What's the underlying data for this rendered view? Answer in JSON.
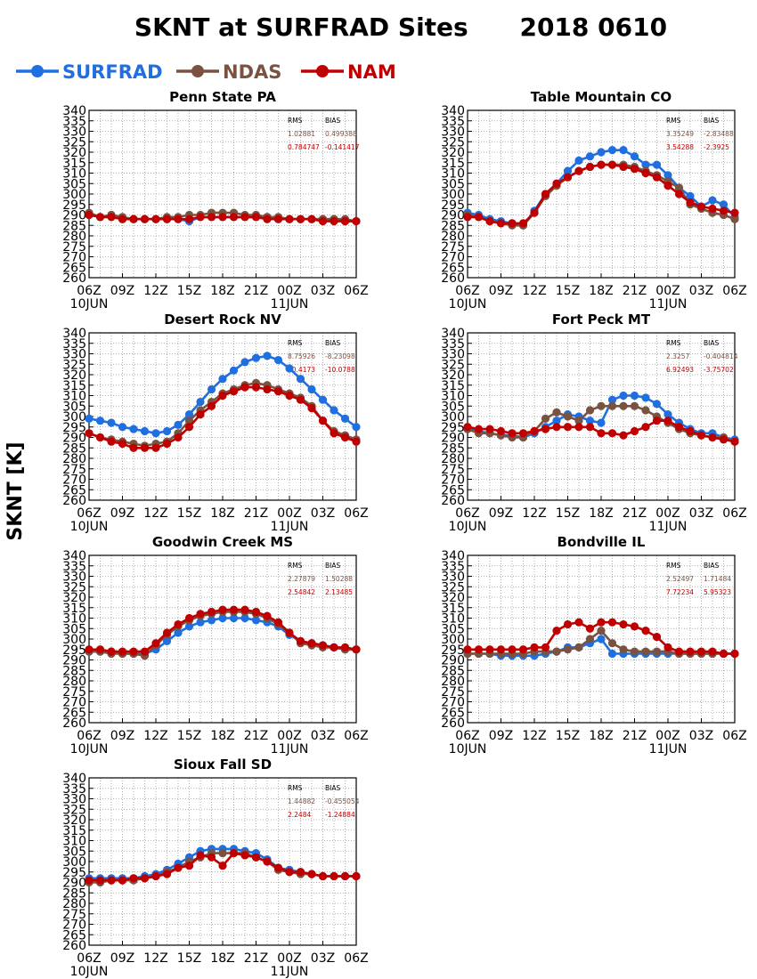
{
  "title": "SKNT at SURFRAD Sites",
  "date": "2018 0610",
  "ylabel": "SKNT [K]",
  "legend": [
    {
      "name": "SURFRAD",
      "color": "#1f6fe0"
    },
    {
      "name": "NDAS",
      "color": "#7a5240"
    },
    {
      "name": "NAM",
      "color": "#c00000"
    }
  ],
  "stats_header": {
    "rms": "RMS",
    "bias": "BIAS"
  },
  "axes": {
    "ylim": [
      260,
      340
    ],
    "yticks": [
      260,
      265,
      270,
      275,
      280,
      285,
      290,
      295,
      300,
      305,
      310,
      315,
      320,
      325,
      330,
      335,
      340
    ],
    "xlim": [
      0,
      24
    ],
    "xtick_hours": [
      0,
      3,
      6,
      9,
      12,
      15,
      18,
      21,
      24
    ],
    "xtick_labels": [
      "06Z",
      "09Z",
      "12Z",
      "15Z",
      "18Z",
      "21Z",
      "00Z",
      "03Z",
      "06Z"
    ],
    "date_labels": [
      {
        "hour": 0,
        "text": "10JUN"
      },
      {
        "hour": 18,
        "text": "11JUN"
      }
    ],
    "grid": true
  },
  "chart_data": [
    {
      "type": "line",
      "title": "Penn State PA",
      "x": [
        0,
        1,
        2,
        3,
        4,
        5,
        6,
        7,
        8,
        9,
        10,
        11,
        12,
        13,
        14,
        15,
        16,
        17,
        18,
        19,
        20,
        21,
        22,
        23,
        24
      ],
      "stats": {
        "ndas": [
          "1.02881",
          "0.499388"
        ],
        "nam": [
          "0.784747",
          "-0.141417"
        ]
      },
      "series": [
        {
          "name": "SURFRAD",
          "values": [
            290,
            289,
            290,
            288,
            288,
            288,
            288,
            288,
            288,
            287,
            289,
            289,
            289,
            289,
            289,
            289,
            289,
            288,
            288,
            288,
            288,
            288,
            288,
            287,
            287
          ]
        },
        {
          "name": "NDAS",
          "values": [
            291,
            289,
            290,
            289,
            288,
            288,
            288,
            289,
            289,
            290,
            290,
            291,
            291,
            291,
            290,
            290,
            289,
            289,
            288,
            288,
            288,
            288,
            288,
            288,
            287
          ]
        },
        {
          "name": "NAM",
          "values": [
            290,
            289,
            289,
            288,
            288,
            288,
            288,
            288,
            288,
            288,
            289,
            289,
            289,
            289,
            289,
            289,
            288,
            288,
            288,
            288,
            288,
            287,
            287,
            287,
            287
          ]
        }
      ]
    },
    {
      "type": "line",
      "title": "Table Mountain CO",
      "x": [
        0,
        1,
        2,
        3,
        4,
        5,
        6,
        7,
        8,
        9,
        10,
        11,
        12,
        13,
        14,
        15,
        16,
        17,
        18,
        19,
        20,
        21,
        22,
        23,
        24
      ],
      "stats": {
        "ndas": [
          "3.35249",
          "-2.83488"
        ],
        "nam": [
          "3.54288",
          "-2.3925"
        ]
      },
      "series": [
        {
          "name": "SURFRAD",
          "values": [
            291,
            290,
            288,
            287,
            286,
            285,
            292,
            300,
            305,
            311,
            316,
            318,
            320,
            321,
            321,
            318,
            314,
            314,
            309,
            303,
            299,
            294,
            297,
            295,
            289
          ]
        },
        {
          "name": "NDAS",
          "values": [
            290,
            289,
            287,
            286,
            285,
            285,
            291,
            299,
            304,
            308,
            311,
            313,
            314,
            314,
            314,
            313,
            311,
            309,
            306,
            303,
            295,
            293,
            291,
            290,
            288
          ]
        },
        {
          "name": "NAM",
          "values": [
            289,
            289,
            287,
            286,
            286,
            286,
            291,
            300,
            305,
            308,
            311,
            313,
            314,
            314,
            313,
            312,
            310,
            308,
            304,
            300,
            296,
            294,
            293,
            292,
            291
          ]
        }
      ]
    },
    {
      "type": "line",
      "title": "Desert Rock NV",
      "x": [
        0,
        1,
        2,
        3,
        4,
        5,
        6,
        7,
        8,
        9,
        10,
        11,
        12,
        13,
        14,
        15,
        16,
        17,
        18,
        19,
        20,
        21,
        22,
        23,
        24
      ],
      "stats": {
        "ndas": [
          "8.75926",
          "-8.23098"
        ],
        "nam": [
          "10.4173",
          "-10.0788"
        ]
      },
      "series": [
        {
          "name": "SURFRAD",
          "values": [
            299,
            298,
            297,
            295,
            294,
            293,
            292,
            293,
            296,
            301,
            307,
            313,
            318,
            322,
            326,
            328,
            329,
            327,
            323,
            318,
            313,
            308,
            303,
            299,
            295
          ]
        },
        {
          "name": "NDAS",
          "values": [
            292,
            290,
            289,
            288,
            287,
            286,
            287,
            288,
            292,
            298,
            303,
            307,
            311,
            313,
            315,
            316,
            315,
            313,
            311,
            309,
            305,
            298,
            293,
            291,
            289
          ]
        },
        {
          "name": "NAM",
          "values": [
            292,
            290,
            288,
            287,
            285,
            285,
            285,
            287,
            290,
            295,
            301,
            305,
            310,
            312,
            314,
            314,
            313,
            312,
            310,
            308,
            304,
            298,
            292,
            290,
            288
          ]
        }
      ]
    },
    {
      "type": "line",
      "title": "Fort Peck MT",
      "x": [
        0,
        1,
        2,
        3,
        4,
        5,
        6,
        7,
        8,
        9,
        10,
        11,
        12,
        13,
        14,
        15,
        16,
        17,
        18,
        19,
        20,
        21,
        22,
        23,
        24
      ],
      "stats": {
        "ndas": [
          "2.3257",
          "-0.404814"
        ],
        "nam": [
          "6.92493",
          "-3.75702"
        ]
      },
      "series": [
        {
          "name": "SURFRAD",
          "values": [
            294,
            293,
            292,
            291,
            291,
            290,
            292,
            295,
            298,
            301,
            300,
            298,
            297,
            308,
            310,
            310,
            309,
            306,
            301,
            297,
            294,
            292,
            292,
            290,
            289
          ]
        },
        {
          "name": "NDAS",
          "values": [
            294,
            292,
            292,
            291,
            290,
            290,
            293,
            299,
            302,
            300,
            298,
            303,
            305,
            305,
            305,
            305,
            303,
            300,
            297,
            294,
            292,
            291,
            290,
            290,
            288
          ]
        },
        {
          "name": "NAM",
          "values": [
            295,
            294,
            294,
            293,
            292,
            292,
            293,
            294,
            295,
            295,
            295,
            295,
            292,
            292,
            291,
            293,
            295,
            298,
            298,
            295,
            293,
            291,
            290,
            289,
            288
          ]
        }
      ]
    },
    {
      "type": "line",
      "title": "Goodwin Creek MS",
      "x": [
        0,
        1,
        2,
        3,
        4,
        5,
        6,
        7,
        8,
        9,
        10,
        11,
        12,
        13,
        14,
        15,
        16,
        17,
        18,
        19,
        20,
        21,
        22,
        23,
        24
      ],
      "stats": {
        "ndas": [
          "2.27879",
          "1.50288"
        ],
        "nam": [
          "2.54842",
          "2.13485"
        ]
      },
      "series": [
        {
          "name": "SURFRAD",
          "values": [
            294,
            294,
            294,
            293,
            293,
            293,
            295,
            299,
            303,
            306,
            308,
            309,
            310,
            310,
            310,
            309,
            308,
            306,
            302,
            299,
            298,
            297,
            296,
            295,
            295
          ]
        },
        {
          "name": "NDAS",
          "values": [
            294,
            294,
            293,
            293,
            293,
            292,
            297,
            302,
            306,
            309,
            311,
            312,
            313,
            313,
            313,
            312,
            310,
            307,
            303,
            298,
            297,
            296,
            296,
            295,
            295
          ]
        },
        {
          "name": "NAM",
          "values": [
            295,
            295,
            294,
            294,
            294,
            294,
            298,
            303,
            307,
            310,
            312,
            313,
            314,
            314,
            314,
            313,
            311,
            308,
            303,
            299,
            298,
            297,
            296,
            296,
            295
          ]
        }
      ]
    },
    {
      "type": "line",
      "title": "Bondville IL",
      "x": [
        0,
        1,
        2,
        3,
        4,
        5,
        6,
        7,
        8,
        9,
        10,
        11,
        12,
        13,
        14,
        15,
        16,
        17,
        18,
        19,
        20,
        21,
        22,
        23,
        24
      ],
      "stats": {
        "ndas": [
          "2.52497",
          "1.71484"
        ],
        "nam": [
          "7.72234",
          "5.95323"
        ]
      },
      "series": [
        {
          "name": "SURFRAD",
          "values": [
            293,
            293,
            293,
            292,
            292,
            292,
            292,
            293,
            294,
            296,
            296,
            298,
            300,
            293,
            293,
            293,
            293,
            293,
            293,
            293,
            293,
            293,
            293,
            293,
            293
          ]
        },
        {
          "name": "NDAS",
          "values": [
            293,
            293,
            293,
            293,
            293,
            293,
            294,
            294,
            294,
            295,
            296,
            300,
            304,
            298,
            295,
            294,
            294,
            294,
            294,
            293,
            293,
            293,
            293,
            293,
            293
          ]
        },
        {
          "name": "NAM",
          "values": [
            295,
            295,
            295,
            295,
            295,
            295,
            296,
            296,
            304,
            307,
            308,
            305,
            308,
            308,
            307,
            306,
            304,
            301,
            296,
            294,
            294,
            294,
            294,
            293,
            293
          ]
        }
      ]
    },
    {
      "type": "line",
      "title": "Sioux Fall SD",
      "x": [
        0,
        1,
        2,
        3,
        4,
        5,
        6,
        7,
        8,
        9,
        10,
        11,
        12,
        13,
        14,
        15,
        16,
        17,
        18,
        19,
        20,
        21,
        22,
        23,
        24
      ],
      "stats": {
        "ndas": [
          "1.44882",
          "-0.455054"
        ],
        "nam": [
          "2.2484",
          "-1.24884"
        ]
      },
      "series": [
        {
          "name": "SURFRAD",
          "values": [
            292,
            292,
            292,
            292,
            292,
            293,
            294,
            296,
            299,
            302,
            305,
            306,
            306,
            306,
            305,
            304,
            301,
            297,
            296,
            295,
            294,
            293,
            293,
            293,
            293
          ]
        },
        {
          "name": "NDAS",
          "values": [
            290,
            290,
            291,
            291,
            291,
            292,
            293,
            295,
            297,
            300,
            302,
            304,
            304,
            304,
            304,
            302,
            300,
            296,
            295,
            294,
            294,
            293,
            293,
            293,
            293
          ]
        },
        {
          "name": "NAM",
          "values": [
            291,
            291,
            291,
            291,
            292,
            292,
            293,
            294,
            297,
            298,
            303,
            302,
            298,
            304,
            303,
            302,
            300,
            297,
            295,
            295,
            294,
            293,
            293,
            293,
            293
          ]
        }
      ]
    }
  ]
}
